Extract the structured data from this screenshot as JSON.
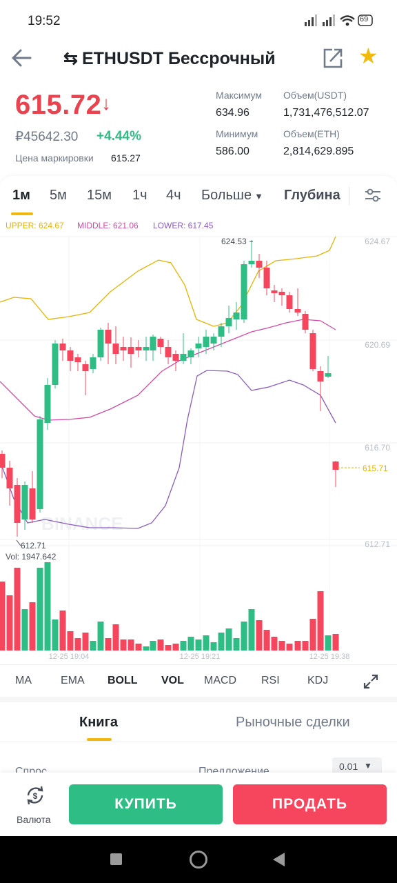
{
  "status": {
    "time": "19:52",
    "battery": "69"
  },
  "header": {
    "title": "ETHUSDT Бессрочный"
  },
  "price": {
    "last": "615.72",
    "rub": "₽45642.30",
    "change": "+4.44%",
    "mark_label": "Цена маркировки",
    "mark_value": "615.27"
  },
  "stats": {
    "high_label": "Максимум",
    "high": "634.96",
    "low_label": "Минимум",
    "low": "586.00",
    "vol_usdt_label": "Объем(USDT)",
    "vol_usdt": "1,731,476,512.07",
    "vol_eth_label": "Объем(ETH)",
    "vol_eth": "2,814,629.895"
  },
  "intervals": [
    "1м",
    "5м",
    "15м",
    "1ч",
    "4ч",
    "Больше",
    "Глубина"
  ],
  "active_interval": "1м",
  "boll": {
    "upper": "UPPER: 624.67",
    "middle": "MIDDLE: 621.06",
    "lower": "LOWER: 617.45"
  },
  "chart_data": {
    "type": "candlestick",
    "y_ticks": [
      "624.67",
      "620.69",
      "616.70",
      "612.71"
    ],
    "x_ticks": [
      "12-25 19:04",
      "12-25 19:21",
      "12-25 19:38"
    ],
    "max_label": "624.53",
    "min_label": "612.71",
    "current_price": "615.71",
    "volume_label": "Vol: 1947.642",
    "watermark": "BINANCE",
    "colors": {
      "up": "#2ebd85",
      "down": "#f6465d",
      "upper": "#e9b200",
      "middle": "#d04aa8",
      "lower": "#8a5bc0"
    }
  },
  "indicators": [
    "MA",
    "EMA",
    "BOLL",
    "VOL",
    "MACD",
    "RSI",
    "KDJ"
  ],
  "book": {
    "tab_book": "Книга",
    "tab_trades": "Рыночные сделки",
    "bid": "Спрос",
    "ask": "Предложение",
    "precision": "0.01"
  },
  "actions": {
    "currency": "Валюта",
    "buy": "КУПИТЬ",
    "sell": "ПРОДАТЬ"
  }
}
